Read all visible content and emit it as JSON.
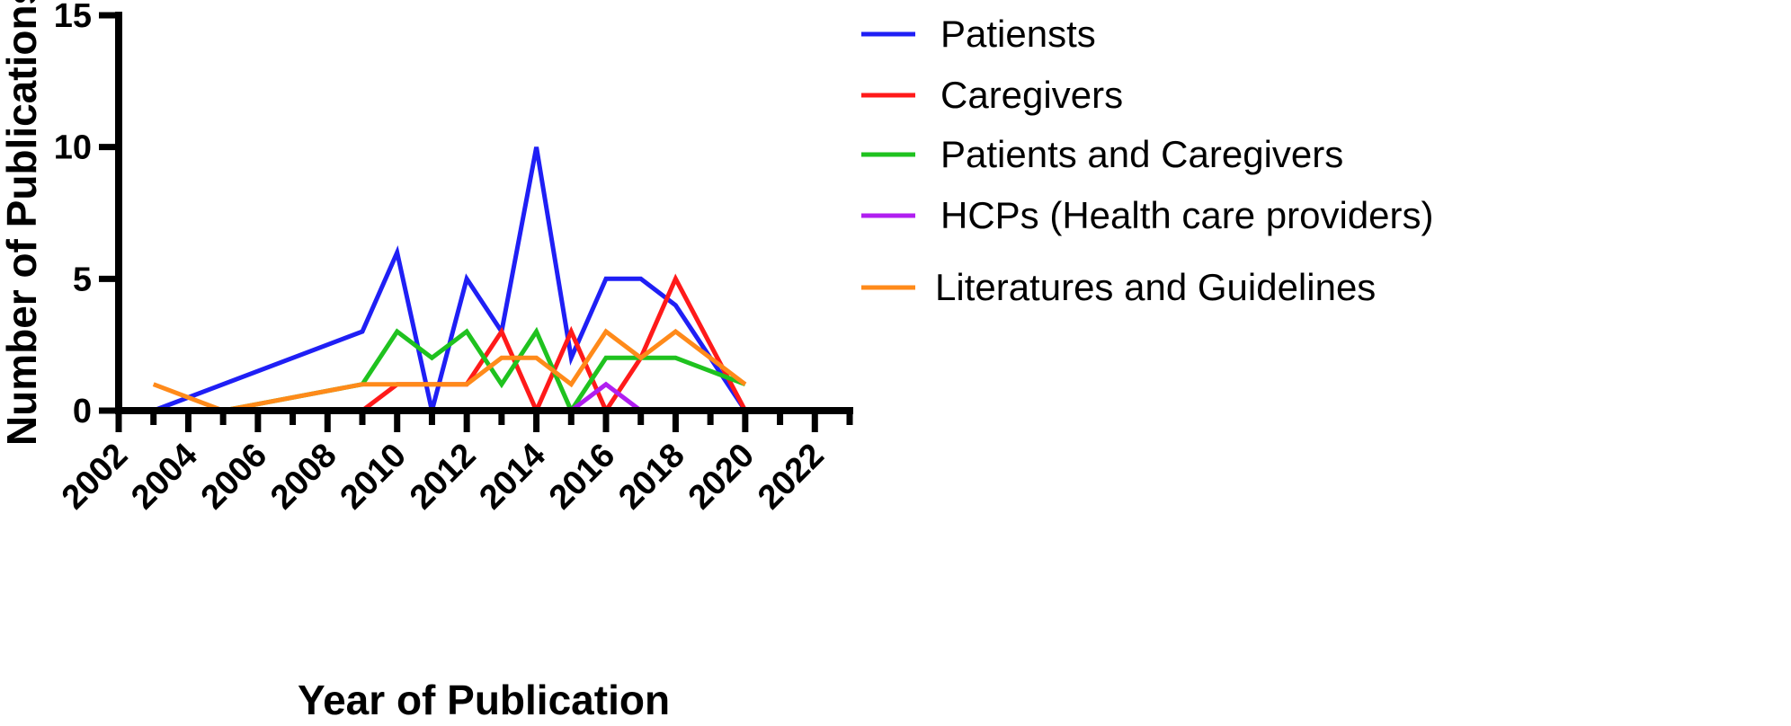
{
  "chart_data": {
    "type": "line",
    "xlabel": "Year of Publication",
    "ylabel": "Number of Publications",
    "xlim": [
      2002,
      2023
    ],
    "ylim": [
      0,
      15
    ],
    "x_ticks": [
      2002,
      2004,
      2006,
      2008,
      2010,
      2012,
      2014,
      2016,
      2018,
      2020,
      2022
    ],
    "y_ticks": [
      0,
      5,
      10,
      15
    ],
    "grid": false,
    "legend_position": "right",
    "series": [
      {
        "name": "Patiensts",
        "color": "#1f1ff5",
        "points": [
          [
            2003,
            0
          ],
          [
            2009,
            3
          ],
          [
            2010,
            6
          ],
          [
            2011,
            0
          ],
          [
            2012,
            5
          ],
          [
            2013,
            3
          ],
          [
            2014,
            10
          ],
          [
            2015,
            2
          ],
          [
            2016,
            5
          ],
          [
            2017,
            5
          ],
          [
            2018,
            4
          ],
          [
            2020,
            0
          ]
        ]
      },
      {
        "name": "Caregivers",
        "color": "#ff1a1a",
        "points": [
          [
            2003,
            0
          ],
          [
            2009,
            0
          ],
          [
            2010,
            1
          ],
          [
            2012,
            1
          ],
          [
            2013,
            3
          ],
          [
            2014,
            0
          ],
          [
            2015,
            3
          ],
          [
            2016,
            0
          ],
          [
            2017,
            2
          ],
          [
            2018,
            5
          ],
          [
            2020,
            0
          ]
        ]
      },
      {
        "name": "Patients and Caregivers",
        "color": "#1fc21f",
        "points": [
          [
            2003,
            0
          ],
          [
            2005,
            0
          ],
          [
            2009,
            1
          ],
          [
            2010,
            3
          ],
          [
            2011,
            2
          ],
          [
            2012,
            3
          ],
          [
            2013,
            1
          ],
          [
            2014,
            3
          ],
          [
            2015,
            0
          ],
          [
            2016,
            2
          ],
          [
            2018,
            2
          ],
          [
            2020,
            1
          ]
        ]
      },
      {
        "name": "HCPs (Health care providers)",
        "color": "#b01ff0",
        "points": [
          [
            2003,
            0
          ],
          [
            2015,
            0
          ],
          [
            2016,
            1
          ],
          [
            2017,
            0
          ],
          [
            2020,
            0
          ]
        ]
      },
      {
        "name": "Literatures and Guidelines",
        "color": "#ff8a1a",
        "points": [
          [
            2003,
            1
          ],
          [
            2005,
            0
          ],
          [
            2009,
            1
          ],
          [
            2012,
            1
          ],
          [
            2013,
            2
          ],
          [
            2014,
            2
          ],
          [
            2015,
            1
          ],
          [
            2016,
            3
          ],
          [
            2017,
            2
          ],
          [
            2018,
            3
          ],
          [
            2020,
            1
          ]
        ]
      }
    ]
  }
}
